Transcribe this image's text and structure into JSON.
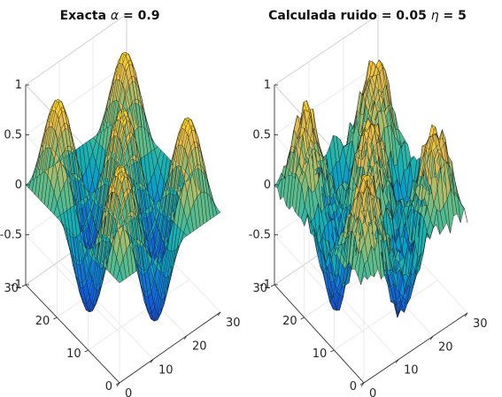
{
  "figure": {
    "panels": [
      {
        "title_prefix": "Exacta ",
        "title_symbol": "α",
        "title_suffix": " = 0.9"
      },
      {
        "title_prefix": "Calculada  ruido = 0.05 ",
        "title_symbol": "η",
        "title_suffix": " = 5"
      }
    ]
  },
  "chart_data": [
    {
      "type": "surface",
      "title": "Exacta α = 0.9",
      "xlabel": "",
      "ylabel": "",
      "zlabel": "",
      "xlim": [
        0,
        30
      ],
      "ylim": [
        0,
        30
      ],
      "zlim": [
        -1,
        1
      ],
      "x_ticks": [
        "0",
        "10",
        "20",
        "30"
      ],
      "y_ticks": [
        "0",
        "10",
        "20",
        "30"
      ],
      "z_ticks": [
        "-1",
        "-0.5",
        "0",
        "0.5",
        "1"
      ],
      "grid_size": 31,
      "function": "z = 0.9*sin(x*pi/10)*sin(y*pi/10) (approx.)",
      "noise": 0,
      "colormap": "parula",
      "grid": "on"
    },
    {
      "type": "surface",
      "title": "Calculada  ruido = 0.05 η = 5",
      "xlabel": "",
      "ylabel": "",
      "zlabel": "",
      "xlim": [
        0,
        30
      ],
      "ylim": [
        0,
        30
      ],
      "zlim": [
        -1,
        1
      ],
      "x_ticks": [
        "0",
        "10",
        "20",
        "30"
      ],
      "y_ticks": [
        "0",
        "10",
        "20",
        "30"
      ],
      "z_ticks": [
        "-1",
        "-0.5",
        "0",
        "0.5",
        "1"
      ],
      "grid_size": 31,
      "function": "z ≈ 0.8*sin(x*pi/10)*sin(y*pi/10) + noise (approx.)",
      "noise": 0.05,
      "colormap": "parula",
      "grid": "on"
    }
  ]
}
